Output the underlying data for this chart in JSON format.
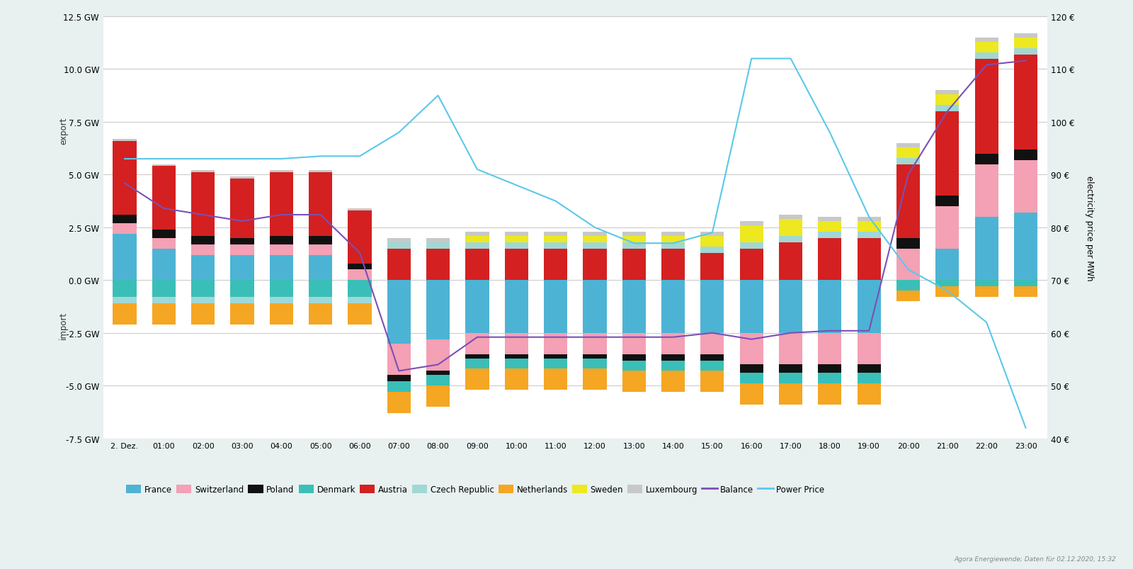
{
  "hours": [
    "2. Dez.",
    "01:00",
    "02:00",
    "03:00",
    "04:00",
    "05:00",
    "06:00",
    "07:00",
    "08:00",
    "09:00",
    "10:00",
    "11:00",
    "12:00",
    "13:00",
    "14:00",
    "15:00",
    "16:00",
    "17:00",
    "18:00",
    "19:00",
    "20:00",
    "21:00",
    "22:00",
    "23:00"
  ],
  "France": [
    2.2,
    1.5,
    1.2,
    1.2,
    1.2,
    1.2,
    0.0,
    -3.0,
    -2.8,
    -2.5,
    -2.5,
    -2.5,
    -2.5,
    -2.5,
    -2.5,
    -2.5,
    -2.5,
    -2.5,
    -2.5,
    -2.5,
    0.0,
    1.5,
    3.0,
    3.2
  ],
  "Switzerland": [
    0.5,
    0.5,
    0.5,
    0.5,
    0.5,
    0.5,
    0.5,
    -1.5,
    -1.5,
    -1.0,
    -1.0,
    -1.0,
    -1.0,
    -1.0,
    -1.0,
    -1.0,
    -1.5,
    -1.5,
    -1.5,
    -1.5,
    1.5,
    2.0,
    2.5,
    2.5
  ],
  "Poland": [
    0.4,
    0.4,
    0.4,
    0.3,
    0.4,
    0.4,
    0.3,
    -0.3,
    -0.2,
    -0.2,
    -0.2,
    -0.2,
    -0.2,
    -0.3,
    -0.3,
    -0.3,
    -0.4,
    -0.4,
    -0.4,
    -0.4,
    0.5,
    0.5,
    0.5,
    0.5
  ],
  "Denmark": [
    -0.8,
    -0.8,
    -0.8,
    -0.8,
    -0.8,
    -0.8,
    -0.8,
    -0.5,
    -0.5,
    -0.5,
    -0.5,
    -0.5,
    -0.5,
    -0.5,
    -0.5,
    -0.5,
    -0.5,
    -0.5,
    -0.5,
    -0.5,
    -0.5,
    -0.3,
    -0.3,
    -0.3
  ],
  "Austria": [
    3.5,
    3.0,
    3.0,
    2.8,
    3.0,
    3.0,
    2.5,
    1.5,
    1.5,
    1.5,
    1.5,
    1.5,
    1.5,
    1.5,
    1.5,
    1.3,
    1.5,
    1.8,
    2.0,
    2.0,
    3.5,
    4.0,
    4.5,
    4.5
  ],
  "Czech Republic": [
    -0.3,
    -0.3,
    -0.3,
    -0.3,
    -0.3,
    -0.3,
    -0.3,
    0.3,
    0.3,
    0.3,
    0.3,
    0.3,
    0.3,
    0.3,
    0.3,
    0.3,
    0.3,
    0.3,
    0.3,
    0.3,
    0.3,
    0.3,
    0.3,
    0.3
  ],
  "Netherlands": [
    -1.0,
    -1.0,
    -1.0,
    -1.0,
    -1.0,
    -1.0,
    -1.0,
    -1.0,
    -1.0,
    -1.0,
    -1.0,
    -1.0,
    -1.0,
    -1.0,
    -1.0,
    -1.0,
    -1.0,
    -1.0,
    -1.0,
    -1.0,
    -0.5,
    -0.5,
    -0.5,
    -0.5
  ],
  "Sweden": [
    0.0,
    0.0,
    0.0,
    0.0,
    0.0,
    0.0,
    0.0,
    0.0,
    0.0,
    0.3,
    0.3,
    0.3,
    0.3,
    0.3,
    0.3,
    0.5,
    0.8,
    0.8,
    0.5,
    0.5,
    0.5,
    0.5,
    0.5,
    0.5
  ],
  "Luxembourg": [
    0.1,
    0.1,
    0.1,
    0.1,
    0.1,
    0.1,
    0.1,
    0.2,
    0.2,
    0.2,
    0.2,
    0.2,
    0.2,
    0.2,
    0.2,
    0.2,
    0.2,
    0.2,
    0.2,
    0.2,
    0.2,
    0.2,
    0.2,
    0.2
  ],
  "Balance": [
    4.6,
    3.4,
    3.1,
    2.8,
    3.1,
    3.1,
    1.3,
    -4.3,
    -4.0,
    -2.7,
    -2.7,
    -2.7,
    -2.7,
    -2.7,
    -2.7,
    -2.5,
    -2.8,
    -2.5,
    -2.4,
    -2.4,
    5.0,
    8.0,
    10.2,
    10.4
  ],
  "Power Price": [
    93.0,
    93.0,
    93.0,
    93.0,
    93.0,
    93.5,
    93.5,
    98.0,
    105.0,
    91.0,
    88.0,
    85.0,
    80.0,
    77.0,
    77.0,
    79.0,
    112.0,
    112.0,
    98.0,
    82.0,
    72.0,
    68.0,
    62.0,
    42.0
  ],
  "colors": {
    "France": "#4db3d4",
    "Switzerland": "#f4a0b5",
    "Poland": "#111111",
    "Denmark": "#3abfb8",
    "Austria": "#d42020",
    "Czech Republic": "#a0d8d5",
    "Netherlands": "#f5a623",
    "Sweden": "#ede820",
    "Luxembourg": "#c8c8c8",
    "Balance": "#7b4fb5",
    "Power Price": "#5bc8e8"
  },
  "ylim": [
    -7.5,
    12.5
  ],
  "yticks": [
    -7.5,
    -5.0,
    -2.5,
    0.0,
    2.5,
    5.0,
    7.5,
    10.0,
    12.5
  ],
  "y2lim": [
    40,
    120
  ],
  "y2ticks": [
    40,
    50,
    60,
    70,
    80,
    90,
    100,
    110,
    120
  ],
  "plot_bg": "#ffffff",
  "fig_bg": "#e8f0f0",
  "ylabel_left_top": "export",
  "ylabel_left_bot": "import",
  "ylabel_right": "electricity price per MWh"
}
